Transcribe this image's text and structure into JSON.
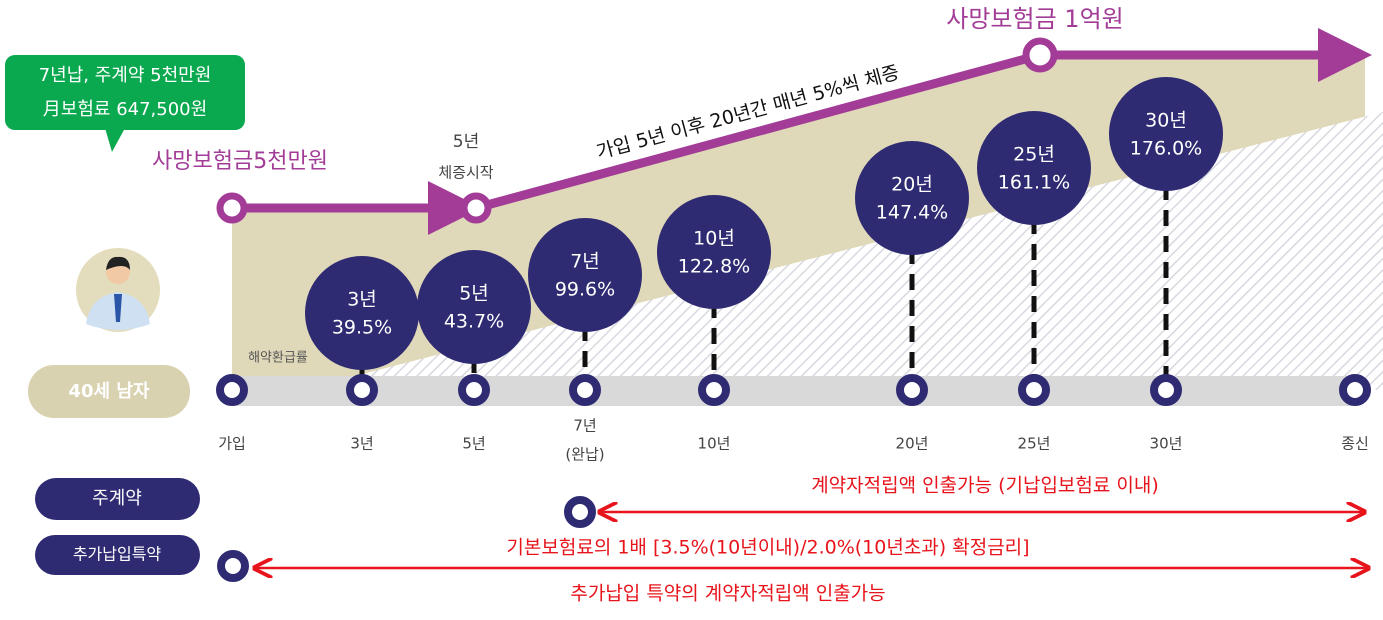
{
  "callout": {
    "line1": "7년납, 주계약 5천만원",
    "line2": "月보험료 647,500원"
  },
  "death_benefit_start": "사망보험금5천만원",
  "increase_start": {
    "year": "5년",
    "label": "체증시작"
  },
  "increase_note": "가입 5년 이후 20년간 매년 5%씩 체증",
  "death_benefit_end": "사망보험금 1억원",
  "insured": "40세 남자",
  "surrender_label": "해약환급률",
  "bubbles": [
    {
      "year": "3년",
      "rate": "39.5%"
    },
    {
      "year": "5년",
      "rate": "43.7%"
    },
    {
      "year": "7년",
      "rate": "99.6%"
    },
    {
      "year": "10년",
      "rate": "122.8%"
    },
    {
      "year": "20년",
      "rate": "147.4%"
    },
    {
      "year": "25년",
      "rate": "161.1%"
    },
    {
      "year": "30년",
      "rate": "176.0%"
    }
  ],
  "timeline": [
    {
      "label": "가입"
    },
    {
      "label": "3년"
    },
    {
      "label": "5년"
    },
    {
      "label": "7년",
      "sub": "(완납)"
    },
    {
      "label": "10년"
    },
    {
      "label": "20년"
    },
    {
      "label": "25년"
    },
    {
      "label": "30년"
    },
    {
      "label": "종신"
    }
  ],
  "main_contract": {
    "label": "주계약",
    "note": "계약자적립액 인출가능 (기납입보험료 이내)"
  },
  "rider": {
    "label": "추가납입특약",
    "note1": "기본보험료의 1배 [3.5%(10년이내)/2.0%(10년초과) 확정금리]",
    "note2": "추가납입 특약의 계약자적립액 인출가능"
  }
}
